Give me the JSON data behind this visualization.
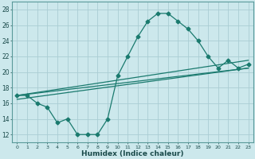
{
  "xlabel": "Humidex (Indice chaleur)",
  "bg_color": "#cce8ec",
  "grid_color": "#aacdd4",
  "line_color": "#1a7a6e",
  "xlim": [
    -0.5,
    23.5
  ],
  "ylim": [
    11,
    29
  ],
  "xticks": [
    0,
    1,
    2,
    3,
    4,
    5,
    6,
    7,
    8,
    9,
    10,
    11,
    12,
    13,
    14,
    15,
    16,
    17,
    18,
    19,
    20,
    21,
    22,
    23
  ],
  "yticks": [
    12,
    14,
    16,
    18,
    20,
    22,
    24,
    26,
    28
  ],
  "line1_x": [
    0,
    1,
    2,
    3,
    4,
    5,
    6,
    7,
    8,
    9,
    10,
    11,
    12,
    13,
    14,
    15,
    16,
    17,
    18,
    19,
    20,
    21,
    22,
    23
  ],
  "line1_y": [
    17.0,
    17.0,
    16.0,
    15.5,
    13.5,
    14.0,
    12.0,
    12.0,
    12.0,
    14.0,
    19.5,
    22.0,
    24.5,
    26.5,
    27.5,
    27.5,
    26.5,
    25.5,
    24.0,
    22.0,
    20.5,
    21.5,
    20.5,
    21.0
  ],
  "line2_x": [
    0,
    23
  ],
  "line2_y": [
    17.0,
    21.5
  ],
  "line3_x": [
    0,
    23
  ],
  "line3_y": [
    16.5,
    20.5
  ],
  "line4_x": [
    0,
    23
  ],
  "line4_y": [
    17.0,
    20.5
  ]
}
